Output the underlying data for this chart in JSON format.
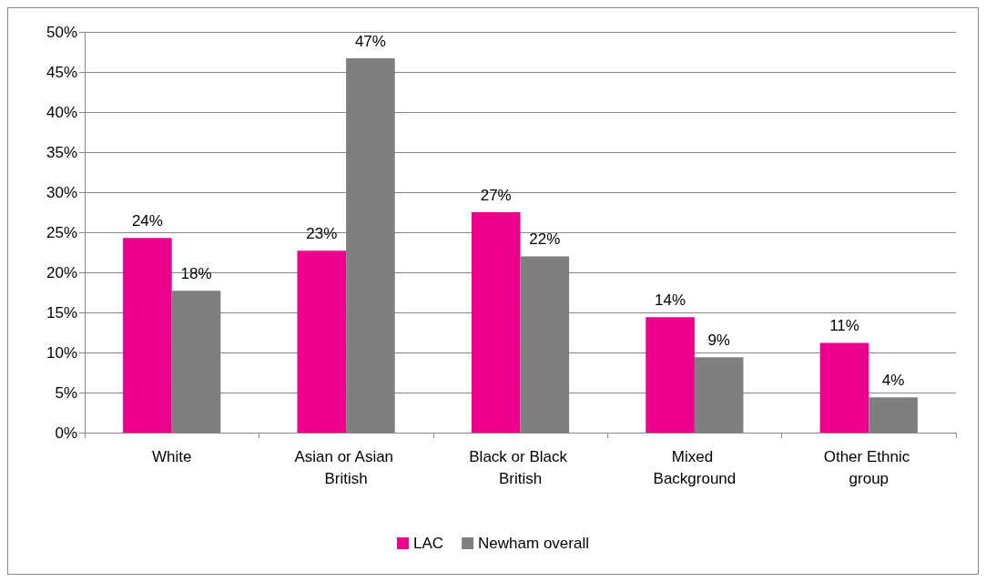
{
  "chart_data": {
    "type": "bar",
    "categories": [
      "White",
      "Asian or Asian British",
      "Black or Black British",
      "Mixed Background",
      "Other Ethnic group"
    ],
    "series": [
      {
        "name": "LAC",
        "color": "#ec008c",
        "values": [
          24.3,
          22.7,
          27.5,
          14.4,
          11.2
        ],
        "value_labels": [
          "24%",
          "23%",
          "27%",
          "14%",
          "11%"
        ]
      },
      {
        "name": "Newham overall",
        "color": "#7f7f7f",
        "values": [
          17.7,
          46.7,
          22.0,
          9.4,
          4.4
        ],
        "value_labels": [
          "18%",
          "47%",
          "22%",
          "9%",
          "4%"
        ]
      }
    ],
    "ylim": [
      0,
      50
    ],
    "yticks": [
      {
        "value": 0,
        "label": "0%"
      },
      {
        "value": 5,
        "label": "5%"
      },
      {
        "value": 10,
        "label": "10%"
      },
      {
        "value": 15,
        "label": "15%"
      },
      {
        "value": 20,
        "label": "20%"
      },
      {
        "value": 25,
        "label": "25%"
      },
      {
        "value": 30,
        "label": "30%"
      },
      {
        "value": 35,
        "label": "35%"
      },
      {
        "value": 40,
        "label": "40%"
      },
      {
        "value": 45,
        "label": "45%"
      },
      {
        "value": 50,
        "label": "50%"
      }
    ],
    "grid": "y",
    "legend": "bottom"
  }
}
